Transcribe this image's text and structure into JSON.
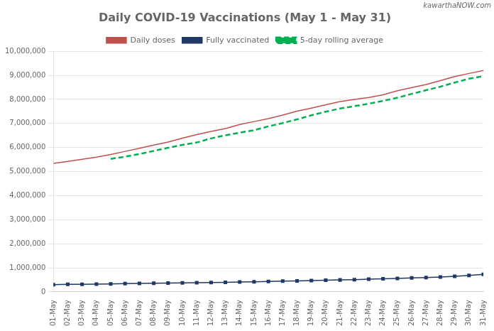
{
  "chart_data": {
    "type": "line",
    "title": "Daily COVID-19 Vaccinations (May 1 - May 31)",
    "annotations": [
      "kawarthaNOW.com"
    ],
    "categories": [
      "01-May",
      "02-May",
      "03-May",
      "04-May",
      "05-May",
      "06-May",
      "07-May",
      "08-May",
      "09-May",
      "10-May",
      "11-May",
      "12-May",
      "13-May",
      "14-May",
      "15-May",
      "16-May",
      "17-May",
      "18-May",
      "19-May",
      "20-May",
      "21-May",
      "22-May",
      "23-May",
      "24-May",
      "25-May",
      "26-May",
      "27-May",
      "28-May",
      "29-May",
      "30-May",
      "31-May"
    ],
    "series": [
      {
        "name": "Daily doses",
        "color": "#c0504d",
        "line_style": "solid",
        "values": [
          5340000,
          5420000,
          5510000,
          5600000,
          5710000,
          5840000,
          5970000,
          6100000,
          6230000,
          6390000,
          6540000,
          6670000,
          6790000,
          6960000,
          7080000,
          7200000,
          7350000,
          7510000,
          7640000,
          7780000,
          7910000,
          8000000,
          8080000,
          8190000,
          8360000,
          8490000,
          8620000,
          8780000,
          8950000,
          9080000,
          9200000
        ]
      },
      {
        "name": "Fully vaccinated",
        "color": "#1f3864",
        "line_style": "solid",
        "marker": "square",
        "values": [
          300000,
          315000,
          318000,
          325000,
          335000,
          345000,
          352000,
          360000,
          368000,
          378000,
          385000,
          392000,
          400000,
          410000,
          422000,
          435000,
          448000,
          460000,
          472000,
          485000,
          498000,
          512000,
          528000,
          545000,
          562000,
          582000,
          600000,
          622000,
          648000,
          685000,
          728000
        ]
      },
      {
        "name": "5-day rolling average",
        "color": "#00b050",
        "line_style": "dashed",
        "values": [
          null,
          null,
          null,
          null,
          5530000,
          5620000,
          5730000,
          5860000,
          5990000,
          6110000,
          6210000,
          6380000,
          6510000,
          6620000,
          6720000,
          6880000,
          7020000,
          7170000,
          7340000,
          7490000,
          7620000,
          7720000,
          7820000,
          7940000,
          8070000,
          8230000,
          8380000,
          8530000,
          8700000,
          8860000,
          8970000
        ]
      }
    ],
    "ylim": [
      0,
      10000000
    ],
    "yticks": [
      0,
      {
        "value": 1000000,
        "label": "1,000,000"
      },
      {
        "value": 2000000,
        "label": "2,000,000"
      },
      {
        "value": 3000000,
        "label": "3,000,000"
      },
      {
        "value": 4000000,
        "label": "4,000,000"
      },
      {
        "value": 5000000,
        "label": "5,000,000"
      },
      {
        "value": 6000000,
        "label": "6,000,000"
      },
      {
        "value": 7000000,
        "label": "7,000,000"
      },
      {
        "value": 8000000,
        "label": "8,000,000"
      },
      {
        "value": 9000000,
        "label": "9,000,000"
      },
      {
        "value": 10000000,
        "label": "10,000,000"
      }
    ],
    "grid": true,
    "legend": "top"
  }
}
